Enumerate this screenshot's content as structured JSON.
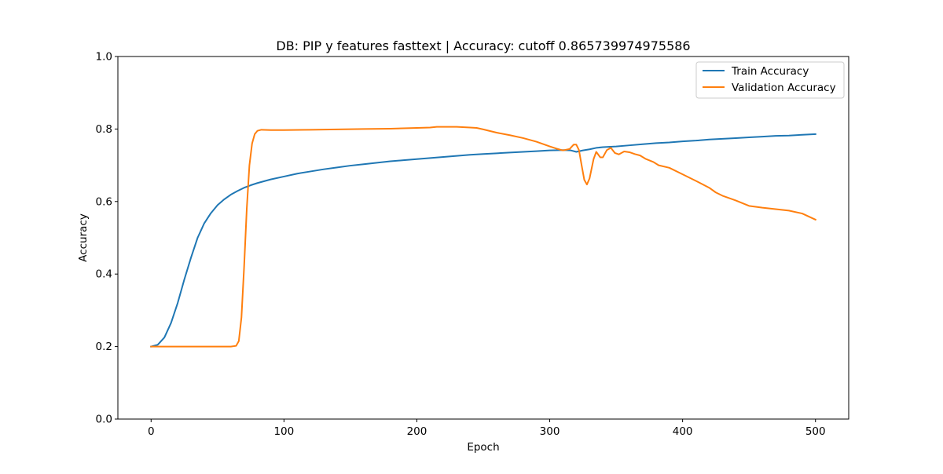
{
  "chart_data": {
    "type": "line",
    "title": "DB: PIP y features fasttext | Accuracy: cutoff 0.865739974975586",
    "xlabel": "Epoch",
    "ylabel": "Accuracy",
    "xlim": [
      -25,
      525
    ],
    "ylim": [
      0.0,
      1.0
    ],
    "xticks": [
      0,
      100,
      200,
      300,
      400,
      500
    ],
    "xtick_labels": [
      "0",
      "100",
      "200",
      "300",
      "400",
      "500"
    ],
    "yticks": [
      0.0,
      0.2,
      0.4,
      0.6,
      0.8,
      1.0
    ],
    "ytick_labels": [
      "0.0",
      "0.2",
      "0.4",
      "0.6",
      "0.8",
      "1.0"
    ],
    "grid": false,
    "legend_position": "top-right",
    "series": [
      {
        "name": "Train Accuracy",
        "color": "#1f77b4",
        "points": [
          [
            0,
            0.2
          ],
          [
            5,
            0.205
          ],
          [
            10,
            0.225
          ],
          [
            15,
            0.265
          ],
          [
            20,
            0.32
          ],
          [
            25,
            0.385
          ],
          [
            30,
            0.445
          ],
          [
            35,
            0.5
          ],
          [
            40,
            0.54
          ],
          [
            45,
            0.568
          ],
          [
            50,
            0.59
          ],
          [
            55,
            0.606
          ],
          [
            60,
            0.619
          ],
          [
            65,
            0.629
          ],
          [
            70,
            0.638
          ],
          [
            75,
            0.645
          ],
          [
            80,
            0.651
          ],
          [
            90,
            0.661
          ],
          [
            100,
            0.669
          ],
          [
            110,
            0.677
          ],
          [
            120,
            0.683
          ],
          [
            130,
            0.689
          ],
          [
            140,
            0.694
          ],
          [
            150,
            0.699
          ],
          [
            160,
            0.703
          ],
          [
            170,
            0.707
          ],
          [
            180,
            0.711
          ],
          [
            190,
            0.714
          ],
          [
            200,
            0.717
          ],
          [
            210,
            0.72
          ],
          [
            220,
            0.723
          ],
          [
            230,
            0.726
          ],
          [
            240,
            0.729
          ],
          [
            250,
            0.731
          ],
          [
            260,
            0.733
          ],
          [
            270,
            0.735
          ],
          [
            280,
            0.737
          ],
          [
            290,
            0.739
          ],
          [
            300,
            0.741
          ],
          [
            310,
            0.742
          ],
          [
            316,
            0.741
          ],
          [
            320,
            0.737
          ],
          [
            325,
            0.741
          ],
          [
            330,
            0.744
          ],
          [
            335,
            0.748
          ],
          [
            340,
            0.75
          ],
          [
            350,
            0.752
          ],
          [
            360,
            0.755
          ],
          [
            370,
            0.758
          ],
          [
            380,
            0.761
          ],
          [
            390,
            0.763
          ],
          [
            400,
            0.766
          ],
          [
            410,
            0.768
          ],
          [
            420,
            0.771
          ],
          [
            430,
            0.773
          ],
          [
            440,
            0.775
          ],
          [
            450,
            0.777
          ],
          [
            460,
            0.779
          ],
          [
            470,
            0.781
          ],
          [
            480,
            0.782
          ],
          [
            490,
            0.784
          ],
          [
            500,
            0.786
          ]
        ]
      },
      {
        "name": "Validation Accuracy",
        "color": "#ff7f0e",
        "points": [
          [
            0,
            0.2
          ],
          [
            10,
            0.2
          ],
          [
            20,
            0.2
          ],
          [
            30,
            0.2
          ],
          [
            40,
            0.2
          ],
          [
            50,
            0.2
          ],
          [
            60,
            0.2
          ],
          [
            64,
            0.202
          ],
          [
            66,
            0.215
          ],
          [
            68,
            0.28
          ],
          [
            70,
            0.42
          ],
          [
            72,
            0.58
          ],
          [
            74,
            0.7
          ],
          [
            76,
            0.76
          ],
          [
            78,
            0.786
          ],
          [
            80,
            0.795
          ],
          [
            83,
            0.798
          ],
          [
            90,
            0.797
          ],
          [
            100,
            0.797
          ],
          [
            120,
            0.798
          ],
          [
            140,
            0.799
          ],
          [
            160,
            0.8
          ],
          [
            180,
            0.801
          ],
          [
            200,
            0.803
          ],
          [
            210,
            0.804
          ],
          [
            215,
            0.806
          ],
          [
            220,
            0.806
          ],
          [
            230,
            0.806
          ],
          [
            240,
            0.804
          ],
          [
            245,
            0.803
          ],
          [
            250,
            0.799
          ],
          [
            260,
            0.79
          ],
          [
            270,
            0.783
          ],
          [
            280,
            0.775
          ],
          [
            290,
            0.765
          ],
          [
            300,
            0.752
          ],
          [
            305,
            0.746
          ],
          [
            310,
            0.741
          ],
          [
            315,
            0.745
          ],
          [
            318,
            0.757
          ],
          [
            320,
            0.757
          ],
          [
            322,
            0.742
          ],
          [
            324,
            0.7
          ],
          [
            326,
            0.66
          ],
          [
            328,
            0.647
          ],
          [
            330,
            0.664
          ],
          [
            333,
            0.717
          ],
          [
            335,
            0.737
          ],
          [
            338,
            0.722
          ],
          [
            340,
            0.722
          ],
          [
            343,
            0.742
          ],
          [
            346,
            0.748
          ],
          [
            349,
            0.734
          ],
          [
            352,
            0.73
          ],
          [
            356,
            0.738
          ],
          [
            360,
            0.736
          ],
          [
            364,
            0.731
          ],
          [
            368,
            0.727
          ],
          [
            372,
            0.718
          ],
          [
            378,
            0.709
          ],
          [
            382,
            0.7
          ],
          [
            390,
            0.693
          ],
          [
            400,
            0.675
          ],
          [
            410,
            0.657
          ],
          [
            420,
            0.638
          ],
          [
            425,
            0.625
          ],
          [
            430,
            0.616
          ],
          [
            440,
            0.603
          ],
          [
            450,
            0.588
          ],
          [
            460,
            0.583
          ],
          [
            470,
            0.579
          ],
          [
            480,
            0.575
          ],
          [
            490,
            0.567
          ],
          [
            500,
            0.55
          ]
        ]
      }
    ]
  }
}
